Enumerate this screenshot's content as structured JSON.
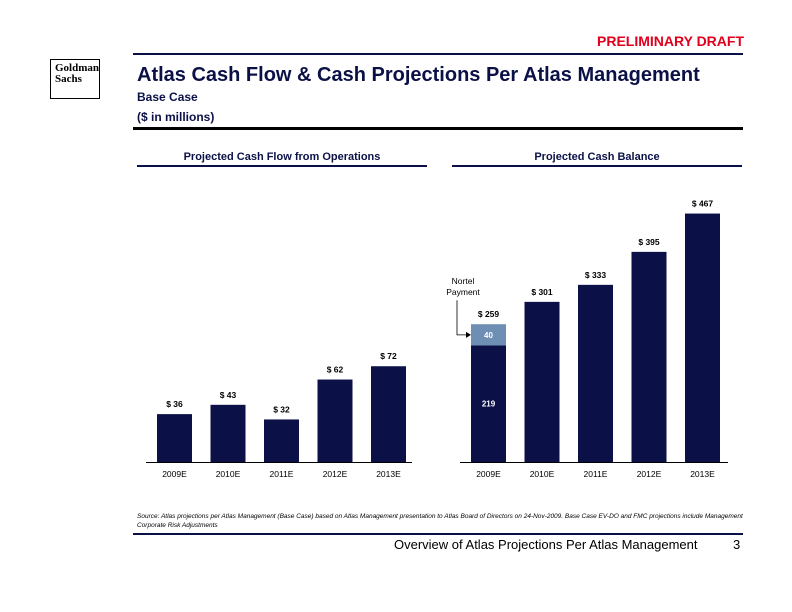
{
  "header": {
    "draft_label": "PRELIMINARY DRAFT",
    "logo_line1": "Goldman",
    "logo_line2": "Sachs",
    "title": "Atlas Cash Flow & Cash Projections Per Atlas Management",
    "subtitle": "Base Case",
    "units": "($ in millions)"
  },
  "colors": {
    "navy": "#0b1147",
    "light_blue": "#6e8fb3",
    "draft_red": "#e0001b"
  },
  "chart_data": [
    {
      "type": "bar",
      "title": "Projected Cash Flow from Operations",
      "categories": [
        "2009E",
        "2010E",
        "2011E",
        "2012E",
        "2013E"
      ],
      "values": [
        36,
        43,
        32,
        62,
        72
      ],
      "labels": [
        "$ 36",
        "$ 43",
        "$ 32",
        "$ 62",
        "$ 72"
      ],
      "ylim": [
        0,
        200
      ],
      "xlabel": "",
      "ylabel": ""
    },
    {
      "type": "bar",
      "title": "Projected Cash Balance",
      "categories": [
        "2009E",
        "2010E",
        "2011E",
        "2012E",
        "2013E"
      ],
      "series": [
        {
          "name": "Cash",
          "values": [
            219,
            301,
            333,
            395,
            467
          ]
        },
        {
          "name": "Nortel Payment",
          "values": [
            40,
            0,
            0,
            0,
            0
          ]
        }
      ],
      "labels": [
        "$ 259",
        "$ 301",
        "$ 333",
        "$ 395",
        "$ 467"
      ],
      "segment_labels": [
        "219",
        "40"
      ],
      "annotation": {
        "line1": "Nortel",
        "line2": "Payment"
      },
      "ylim": [
        0,
        500
      ],
      "xlabel": "",
      "ylabel": ""
    }
  ],
  "footer": {
    "source": "Source: Atlas projections per Atlas Management (Base Case) based on Atlas Management presentation to Atlas Board of Directors on 24-Nov-2009. Base Case EV-DO and FMC projections include Management Corporate Risk Adjustments",
    "title": "Overview of Atlas Projections Per Atlas Management",
    "page": "3"
  }
}
